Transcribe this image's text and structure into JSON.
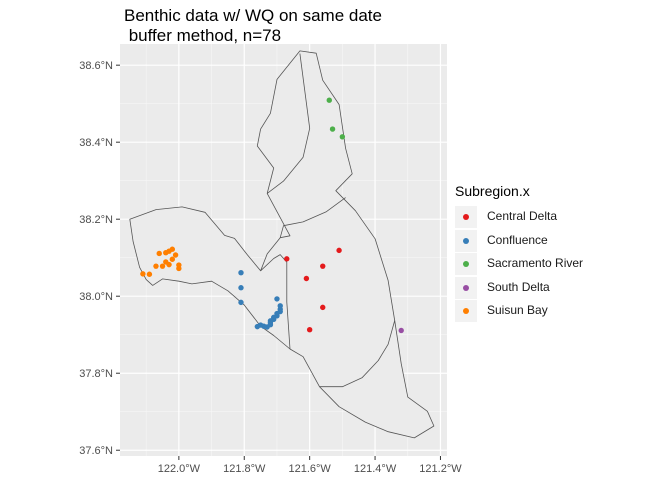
{
  "chart_data": {
    "type": "scatter",
    "title": "Benthic data w/ WQ on same date\n buffer method, n=78",
    "xlabel": "",
    "ylabel": "",
    "xlim": [
      -122.18,
      -121.18
    ],
    "ylim": [
      37.585,
      38.655
    ],
    "x_ticks": [
      -122.0,
      -121.8,
      -121.6,
      -121.4,
      -121.2
    ],
    "x_tick_labels": [
      "122.0°W",
      "121.8°W",
      "121.6°W",
      "121.4°W",
      "121.2°W"
    ],
    "y_ticks": [
      37.6,
      37.8,
      38.0,
      38.2,
      38.4,
      38.6
    ],
    "y_tick_labels": [
      "37.6°N",
      "37.8°N",
      "38.0°N",
      "38.2°N",
      "38.4°N",
      "38.6°N"
    ],
    "grid": true,
    "legend_title": "Subregion.x",
    "legend_position": "right",
    "basemap": {
      "fill": "#ebebeb",
      "stroke": "#555555",
      "outer_boundary": [
        [
          -121.7,
          38.563
        ],
        [
          -121.63,
          38.637
        ],
        [
          -121.58,
          38.631
        ],
        [
          -121.56,
          38.561
        ],
        [
          -121.51,
          38.498
        ],
        [
          -121.49,
          38.384
        ],
        [
          -121.47,
          38.318
        ],
        [
          -121.52,
          38.274
        ],
        [
          -121.46,
          38.222
        ],
        [
          -121.4,
          38.149
        ],
        [
          -121.36,
          38.041
        ],
        [
          -121.34,
          37.937
        ],
        [
          -121.32,
          37.825
        ],
        [
          -121.3,
          37.738
        ],
        [
          -121.24,
          37.701
        ],
        [
          -121.22,
          37.663
        ],
        [
          -121.28,
          37.632
        ],
        [
          -121.36,
          37.648
        ],
        [
          -121.43,
          37.673
        ],
        [
          -121.51,
          37.713
        ],
        [
          -121.57,
          37.765
        ],
        [
          -121.62,
          37.843
        ],
        [
          -121.66,
          37.863
        ],
        [
          -121.71,
          37.898
        ],
        [
          -121.75,
          37.922
        ],
        [
          -121.8,
          37.977
        ],
        [
          -121.85,
          38.014
        ],
        [
          -121.9,
          38.039
        ],
        [
          -121.96,
          38.032
        ],
        [
          -122.0,
          38.039
        ],
        [
          -122.05,
          38.045
        ],
        [
          -122.08,
          38.028
        ],
        [
          -122.1,
          38.043
        ],
        [
          -122.12,
          38.075
        ],
        [
          -122.14,
          38.142
        ],
        [
          -122.15,
          38.2
        ],
        [
          -122.07,
          38.225
        ],
        [
          -121.99,
          38.232
        ],
        [
          -121.92,
          38.218
        ],
        [
          -121.86,
          38.158
        ],
        [
          -121.83,
          38.15
        ],
        [
          -121.79,
          38.107
        ],
        [
          -121.75,
          38.066
        ],
        [
          -121.73,
          38.11
        ],
        [
          -121.69,
          38.152
        ],
        [
          -121.66,
          38.157
        ],
        [
          -121.73,
          38.267
        ],
        [
          -121.71,
          38.333
        ],
        [
          -121.76,
          38.39
        ],
        [
          -121.75,
          38.434
        ],
        [
          -121.72,
          38.475
        ],
        [
          -121.7,
          38.563
        ]
      ],
      "inner_boundaries": [
        [
          [
            -121.69,
            38.152
          ],
          [
            -121.68,
            38.183
          ],
          [
            -121.62,
            38.193
          ],
          [
            -121.55,
            38.219
          ],
          [
            -121.49,
            38.256
          ]
        ],
        [
          [
            -121.73,
            38.267
          ],
          [
            -121.68,
            38.299
          ],
          [
            -121.62,
            38.361
          ],
          [
            -121.6,
            38.436
          ],
          [
            -121.63,
            38.63
          ]
        ],
        [
          [
            -121.75,
            38.066
          ],
          [
            -121.71,
            38.098
          ],
          [
            -121.69,
            38.108
          ],
          [
            -121.67,
            38.088
          ],
          [
            -121.67,
            37.985
          ],
          [
            -121.66,
            37.863
          ]
        ],
        [
          [
            -121.57,
            37.765
          ],
          [
            -121.5,
            37.765
          ],
          [
            -121.44,
            37.788
          ],
          [
            -121.39,
            37.833
          ],
          [
            -121.36,
            37.875
          ],
          [
            -121.34,
            37.937
          ]
        ]
      ]
    },
    "series": [
      {
        "name": "Central Delta",
        "color": "#e41a1c",
        "x": [
          -121.67,
          -121.51,
          -121.56,
          -121.61,
          -121.56,
          -121.6
        ],
        "y": [
          38.097,
          38.119,
          38.078,
          38.046,
          37.971,
          37.913
        ]
      },
      {
        "name": "Confluence",
        "color": "#377eb8",
        "x": [
          -121.81,
          -121.81,
          -121.81,
          -121.7,
          -121.69,
          -121.69,
          -121.69,
          -121.7,
          -121.7,
          -121.71,
          -121.71,
          -121.72,
          -121.72,
          -121.72,
          -121.73,
          -121.74,
          -121.75,
          -121.76
        ],
        "y": [
          38.061,
          38.022,
          37.984,
          37.993,
          37.975,
          37.966,
          37.96,
          37.955,
          37.949,
          37.945,
          37.94,
          37.936,
          37.931,
          37.926,
          37.92,
          37.922,
          37.925,
          37.921
        ]
      },
      {
        "name": "Sacramento River",
        "color": "#4daf4a",
        "x": [
          -121.54,
          -121.53,
          -121.5
        ],
        "y": [
          38.509,
          38.434,
          38.414
        ]
      },
      {
        "name": "South Delta",
        "color": "#984ea3",
        "x": [
          -121.32
        ],
        "y": [
          37.911
        ]
      },
      {
        "name": "Suisun Bay",
        "color": "#ff7f00",
        "x": [
          -122.11,
          -122.09,
          -122.04,
          -122.03,
          -122.02,
          -122.01,
          -122.0,
          -122.0,
          -122.02,
          -122.03,
          -122.04,
          -122.05,
          -122.06,
          -122.07
        ],
        "y": [
          38.058,
          38.057,
          38.113,
          38.117,
          38.122,
          38.107,
          38.081,
          38.072,
          38.096,
          38.082,
          38.089,
          38.078,
          38.111,
          38.078
        ]
      }
    ]
  }
}
